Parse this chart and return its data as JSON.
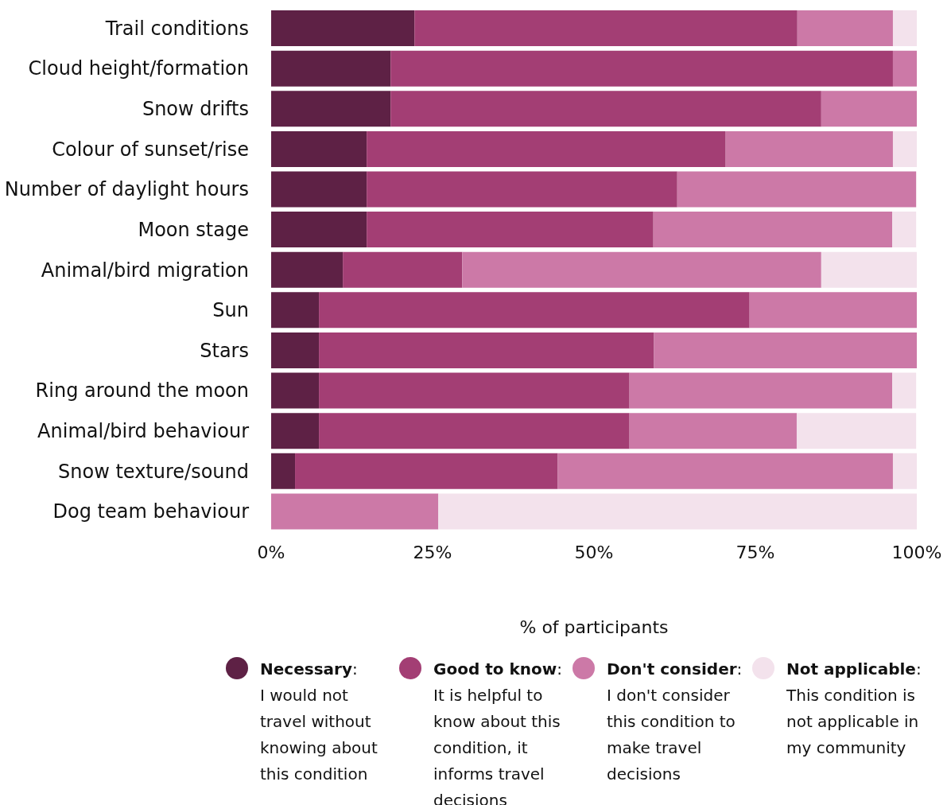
{
  "chart_data": {
    "type": "bar",
    "orientation": "horizontal",
    "stacked": true,
    "xlabel": "% of participants",
    "categories": [
      "Trail conditions",
      "Cloud height/formation",
      "Snow drifts",
      "Colour of sunset/rise",
      "Number of daylight hours",
      "Moon stage",
      "Animal/bird migration",
      "Sun",
      "Stars",
      "Ring around the moon",
      "Animal/bird behaviour",
      "Snow texture/sound",
      "Dog team behaviour"
    ],
    "series": [
      {
        "name": "Necessary: I would not travel without knowing about this condition",
        "color": "#5e2145",
        "values": [
          22.2,
          18.5,
          18.5,
          14.8,
          14.8,
          14.8,
          11.1,
          7.4,
          7.4,
          7.4,
          7.4,
          3.7,
          0
        ]
      },
      {
        "name": "Good to know: It is helpful to know about this condition, it informs travel decisions",
        "color": "#a33e74",
        "values": [
          59.3,
          77.8,
          66.7,
          55.6,
          48.1,
          44.4,
          18.5,
          66.7,
          51.9,
          48.1,
          48.1,
          40.7,
          0
        ]
      },
      {
        "name": "Don't consider: I don't consider this condition to make travel decisions",
        "color": "#cc79a7",
        "values": [
          14.8,
          3.7,
          14.8,
          25.9,
          37.0,
          37.0,
          55.6,
          25.9,
          40.7,
          40.7,
          25.9,
          51.9,
          25.9
        ]
      },
      {
        "name": "Not applicable: This condition is not applicable in my community",
        "color": "#f3e2ec",
        "values": [
          3.7,
          0,
          0,
          3.7,
          0,
          3.7,
          14.8,
          0,
          0,
          3.7,
          18.5,
          3.7,
          74.1
        ]
      }
    ],
    "xlim": [
      0,
      100
    ],
    "xticks": [
      {
        "value": 0,
        "label": "0%"
      },
      {
        "value": 25,
        "label": "25%"
      },
      {
        "value": 50,
        "label": "50%"
      },
      {
        "value": 75,
        "label": "75%"
      },
      {
        "value": 100,
        "label": "100%"
      }
    ],
    "legend": "bottom"
  }
}
